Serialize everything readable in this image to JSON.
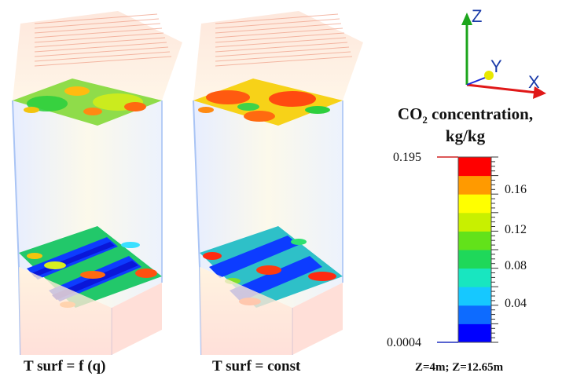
{
  "left_caption": "T surf = f (q)",
  "right_caption": "T surf = const",
  "axes": {
    "x_label": "X",
    "y_label": "Y",
    "z_label": "Z"
  },
  "colorbar": {
    "title_main": "CO",
    "title_sub": "2",
    "title_rest": " concentration,",
    "units": "kg/kg",
    "max_label": "0.195",
    "min_label": "0.0004",
    "tick_labels": [
      "0.16",
      "0.12",
      "0.08",
      "0.04"
    ],
    "colors": [
      "#0000ff",
      "#0d6bff",
      "#16c8ff",
      "#18e6c0",
      "#1fd85a",
      "#62e21a",
      "#c8f000",
      "#ffff00",
      "#ff9a00",
      "#ff0000"
    ]
  },
  "note": "Z=4m; Z=12.65m"
}
